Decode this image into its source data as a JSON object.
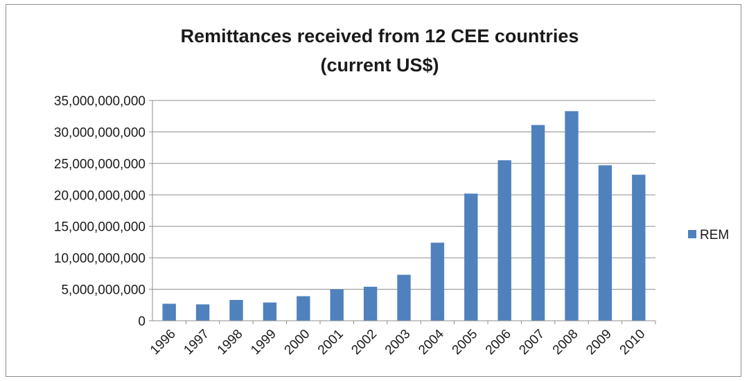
{
  "chart_data": {
    "type": "bar",
    "title": "Remittances received from 12 CEE countries",
    "subtitle": "(current US$)",
    "xlabel": "",
    "ylabel": "",
    "categories": [
      "1996",
      "1997",
      "1998",
      "1999",
      "2000",
      "2001",
      "2002",
      "2003",
      "2004",
      "2005",
      "2006",
      "2007",
      "2008",
      "2009",
      "2010"
    ],
    "series": [
      {
        "name": "REM",
        "color": "#4f81bd",
        "values": [
          2700000000,
          2600000000,
          3300000000,
          2900000000,
          3900000000,
          5000000000,
          5400000000,
          7300000000,
          12400000000,
          20200000000,
          25500000000,
          31100000000,
          33300000000,
          24700000000,
          23200000000
        ]
      }
    ],
    "ylim": [
      0,
      35000000000
    ],
    "yticks": [
      "0",
      "5,000,000,000",
      "10,000,000,000",
      "15,000,000,000",
      "20,000,000,000",
      "25,000,000,000",
      "30,000,000,000",
      "35,000,000,000"
    ],
    "grid": true,
    "legend_position": "right",
    "gridline_color": "#8c8c8c",
    "axis_color": "#8c8c8c"
  }
}
